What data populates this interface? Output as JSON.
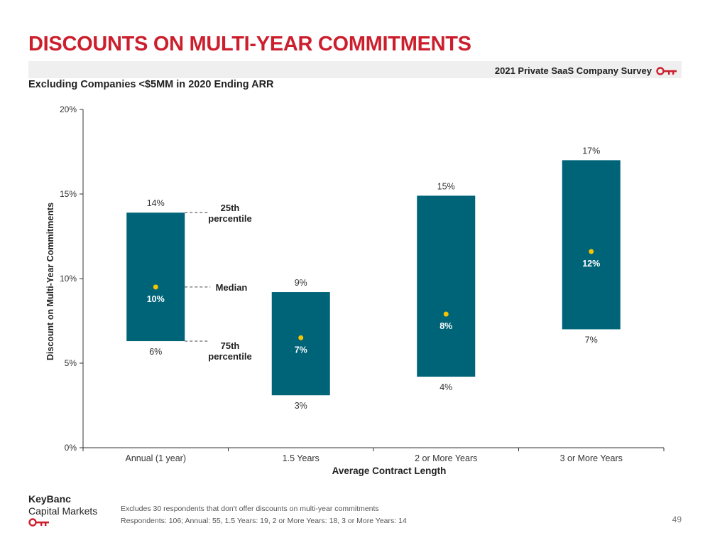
{
  "header": {
    "title": "DISCOUNTS ON MULTI-YEAR COMMITMENTS",
    "survey": "2021 Private SaaS Company Survey",
    "subtitle": "Excluding Companies <$5MM in 2020 Ending ARR"
  },
  "colors": {
    "accent": "#cc1f2d",
    "bar": "#006479",
    "median_dot": "#f5c400",
    "banner": "#efefef"
  },
  "chart_data": {
    "type": "bar",
    "subtype": "floating range bar (25th–75th percentile) with median marker",
    "categories": [
      "Annual (1 year)",
      "1.5 Years",
      "2 or More Years",
      "3 or More Years"
    ],
    "high": [
      13.9,
      9.2,
      14.9,
      17.0
    ],
    "median": [
      9.5,
      6.5,
      7.9,
      11.6
    ],
    "low": [
      6.3,
      3.1,
      4.2,
      7.0
    ],
    "high_labels": [
      "14%",
      "9%",
      "15%",
      "17%"
    ],
    "median_labels": [
      "10%",
      "7%",
      "8%",
      "12%"
    ],
    "low_labels": [
      "6%",
      "3%",
      "4%",
      "7%"
    ],
    "xlabel": "Average Contract Length",
    "ylabel": "Discount on Multi-Year Commitments",
    "ylim": [
      0,
      20
    ],
    "yticks": [
      "0%",
      "5%",
      "10%",
      "15%",
      "20%"
    ],
    "annotations": {
      "top": [
        "25th",
        "percentile"
      ],
      "median": "Median",
      "bottom": [
        "75th",
        "percentile"
      ]
    },
    "grid": false
  },
  "footer": {
    "logo_line1": "KeyBanc",
    "logo_line2": "Capital Markets",
    "note1": "Excludes 30 respondents that don't offer discounts on multi-year commitments",
    "note2": "Respondents: 106; Annual: 55, 1.5 Years: 19, 2 or More Years: 18, 3 or More Years: 14",
    "page": "49"
  }
}
